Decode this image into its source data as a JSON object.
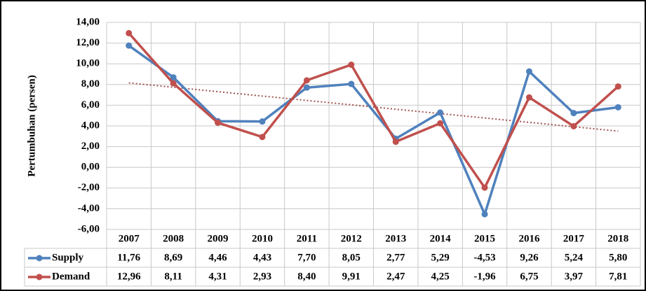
{
  "chart_data": {
    "type": "line",
    "y_axis_label": "Pertumbuhan (persen)",
    "categories": [
      "2007",
      "2008",
      "2009",
      "2010",
      "2011",
      "2012",
      "2013",
      "2014",
      "2015",
      "2016",
      "2017",
      "2018"
    ],
    "series": [
      {
        "name": "Supply",
        "color": "#4f81bd",
        "values": [
          11.76,
          8.69,
          4.46,
          4.43,
          7.7,
          8.05,
          2.77,
          5.29,
          -4.53,
          9.26,
          5.24,
          5.8
        ],
        "value_labels": [
          "11,76",
          "8,69",
          "4,46",
          "4,43",
          "7,70",
          "8,05",
          "2,77",
          "5,29",
          "-4,53",
          "9,26",
          "5,24",
          "5,80"
        ]
      },
      {
        "name": "Demand",
        "color": "#c0504d",
        "values": [
          12.96,
          8.11,
          4.31,
          2.93,
          8.4,
          9.91,
          2.47,
          4.25,
          -1.96,
          6.75,
          3.97,
          7.81
        ],
        "value_labels": [
          "12,96",
          "8,11",
          "4,31",
          "2,93",
          "8,40",
          "9,91",
          "2,47",
          "4,25",
          "-1,96",
          "6,75",
          "3,97",
          "7,81"
        ]
      }
    ],
    "ylim": [
      -6,
      14
    ],
    "yticks": [
      {
        "value": -6,
        "label": "-6,00"
      },
      {
        "value": -4,
        "label": "-4,00"
      },
      {
        "value": -2,
        "label": "-2,00"
      },
      {
        "value": 0,
        "label": "0,00"
      },
      {
        "value": 2,
        "label": "2,00"
      },
      {
        "value": 4,
        "label": "4,00"
      },
      {
        "value": 6,
        "label": "6,00"
      },
      {
        "value": 8,
        "label": "8,00"
      },
      {
        "value": 10,
        "label": "10,00"
      },
      {
        "value": 12,
        "label": "12,00"
      },
      {
        "value": 14,
        "label": "14,00"
      }
    ],
    "grid": true,
    "data_table": true,
    "trendline": {
      "series": 1,
      "kind": "linear",
      "color": "#a0524f"
    }
  }
}
